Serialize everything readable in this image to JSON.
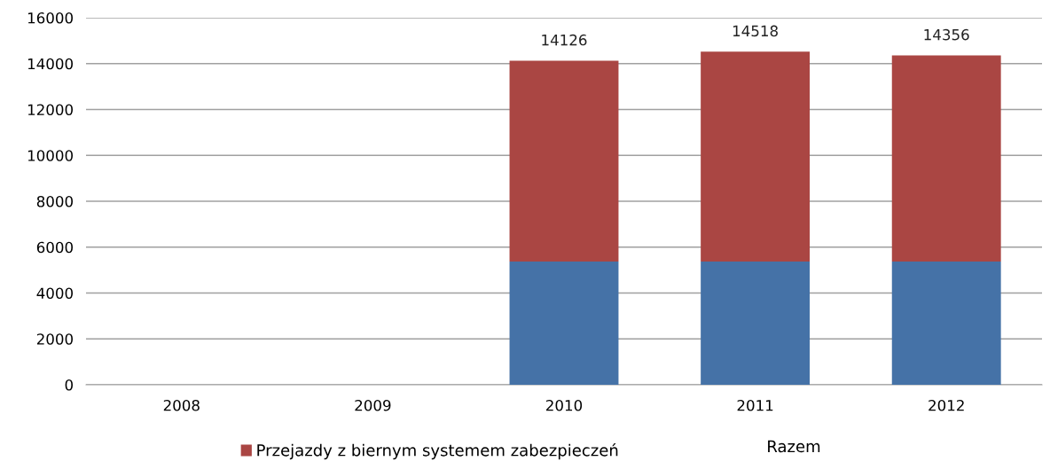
{
  "chart_data": {
    "type": "bar",
    "stacked": true,
    "categories": [
      "2008",
      "2009",
      "2010",
      "2011",
      "2012"
    ],
    "series": [
      {
        "color": "#4572a7",
        "values": [
          null,
          null,
          5370,
          5370,
          5370
        ]
      },
      {
        "name": "Przejazdy z biernym systemem zabezpieczeń",
        "color": "#aa4643",
        "values": [
          null,
          null,
          8756,
          9148,
          8986
        ]
      }
    ],
    "totals": [
      null,
      null,
      "14126",
      "14518",
      "14356"
    ],
    "ylim": [
      0,
      16000
    ],
    "yticks": [
      0,
      2000,
      4000,
      6000,
      8000,
      10000,
      12000,
      14000,
      16000
    ],
    "grid": "y",
    "legend": "bottom",
    "annotations": [
      "Razem"
    ]
  }
}
